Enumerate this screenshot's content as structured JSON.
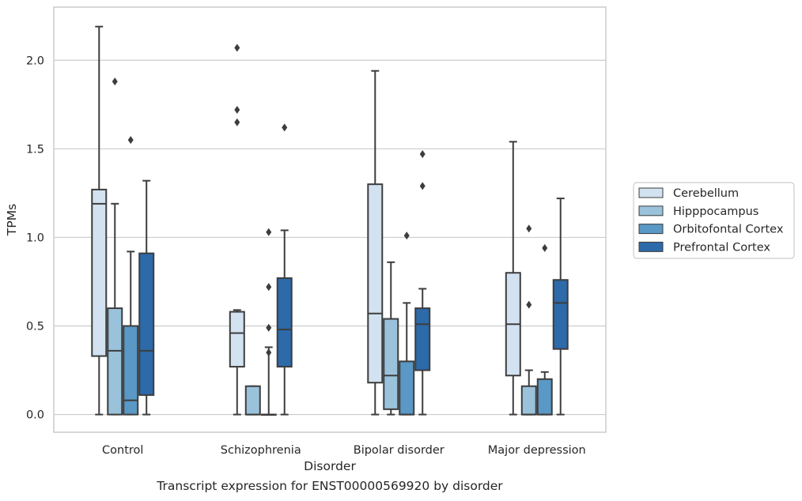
{
  "caption": "Transcript expression for ENST00000569920 by disorder",
  "chart_data": {
    "type": "boxplot",
    "title": "",
    "xlabel": "Disorder",
    "ylabel": "TPMs",
    "ylim": [
      -0.1,
      2.3
    ],
    "yticks": [
      0.0,
      0.5,
      1.0,
      1.5,
      2.0
    ],
    "ytick_labels": [
      "0.0",
      "0.5",
      "1.0",
      "1.5",
      "2.0"
    ],
    "grid": "horizontal",
    "legend_position": "right",
    "categories": [
      "Control",
      "Schizophrenia",
      "Bipolar disorder",
      "Major depression"
    ],
    "series": [
      {
        "name": "Cerebellum",
        "color": "#d2e2f0",
        "boxes": [
          {
            "whislo": 0.0,
            "q1": 0.33,
            "med": 1.19,
            "q3": 1.27,
            "whishi": 2.19,
            "fliers": []
          },
          {
            "whislo": 0.0,
            "q1": 0.27,
            "med": 0.46,
            "q3": 0.58,
            "whishi": 0.59,
            "fliers": [
              1.65,
              1.72,
              2.07
            ]
          },
          {
            "whislo": 0.0,
            "q1": 0.18,
            "med": 0.57,
            "q3": 1.3,
            "whishi": 1.94,
            "fliers": []
          },
          {
            "whislo": 0.0,
            "q1": 0.22,
            "med": 0.51,
            "q3": 0.8,
            "whishi": 1.54,
            "fliers": []
          }
        ]
      },
      {
        "name": "Hipppocampus",
        "color": "#9ac2db",
        "boxes": [
          {
            "whislo": 0.0,
            "q1": 0.0,
            "med": 0.36,
            "q3": 0.6,
            "whishi": 1.19,
            "fliers": [
              1.88
            ]
          },
          {
            "whislo": 0.0,
            "q1": 0.0,
            "med": 0.0,
            "q3": 0.16,
            "whishi": 0.16,
            "fliers": []
          },
          {
            "whislo": 0.0,
            "q1": 0.03,
            "med": 0.22,
            "q3": 0.54,
            "whishi": 0.86,
            "fliers": []
          },
          {
            "whislo": 0.0,
            "q1": 0.0,
            "med": 0.0,
            "q3": 0.16,
            "whishi": 0.25,
            "fliers": [
              0.62,
              1.05
            ]
          }
        ]
      },
      {
        "name": "Orbitofontal Cortex",
        "color": "#5a98c5",
        "boxes": [
          {
            "whislo": 0.0,
            "q1": 0.0,
            "med": 0.08,
            "q3": 0.5,
            "whishi": 0.92,
            "fliers": [
              1.55
            ]
          },
          {
            "whislo": 0.0,
            "q1": 0.0,
            "med": 0.0,
            "q3": 0.0,
            "whishi": 0.38,
            "fliers": [
              0.35,
              0.49,
              0.72,
              1.03
            ]
          },
          {
            "whislo": 0.0,
            "q1": 0.0,
            "med": 0.0,
            "q3": 0.3,
            "whishi": 0.63,
            "fliers": [
              1.01
            ]
          },
          {
            "whislo": 0.0,
            "q1": 0.0,
            "med": 0.0,
            "q3": 0.2,
            "whishi": 0.24,
            "fliers": [
              0.94
            ]
          }
        ]
      },
      {
        "name": "Prefrontal Cortex",
        "color": "#2c6aaa",
        "boxes": [
          {
            "whislo": 0.0,
            "q1": 0.11,
            "med": 0.36,
            "q3": 0.91,
            "whishi": 1.32,
            "fliers": []
          },
          {
            "whislo": 0.0,
            "q1": 0.27,
            "med": 0.48,
            "q3": 0.77,
            "whishi": 1.04,
            "fliers": [
              1.62
            ]
          },
          {
            "whislo": 0.0,
            "q1": 0.25,
            "med": 0.51,
            "q3": 0.6,
            "whishi": 0.71,
            "fliers": [
              1.29,
              1.47
            ]
          },
          {
            "whislo": 0.0,
            "q1": 0.37,
            "med": 0.63,
            "q3": 0.76,
            "whishi": 1.22,
            "fliers": []
          }
        ]
      }
    ],
    "colors": {
      "grid": "#cccccc",
      "frame": "#cccccc",
      "line": "#3d3d3d"
    }
  }
}
